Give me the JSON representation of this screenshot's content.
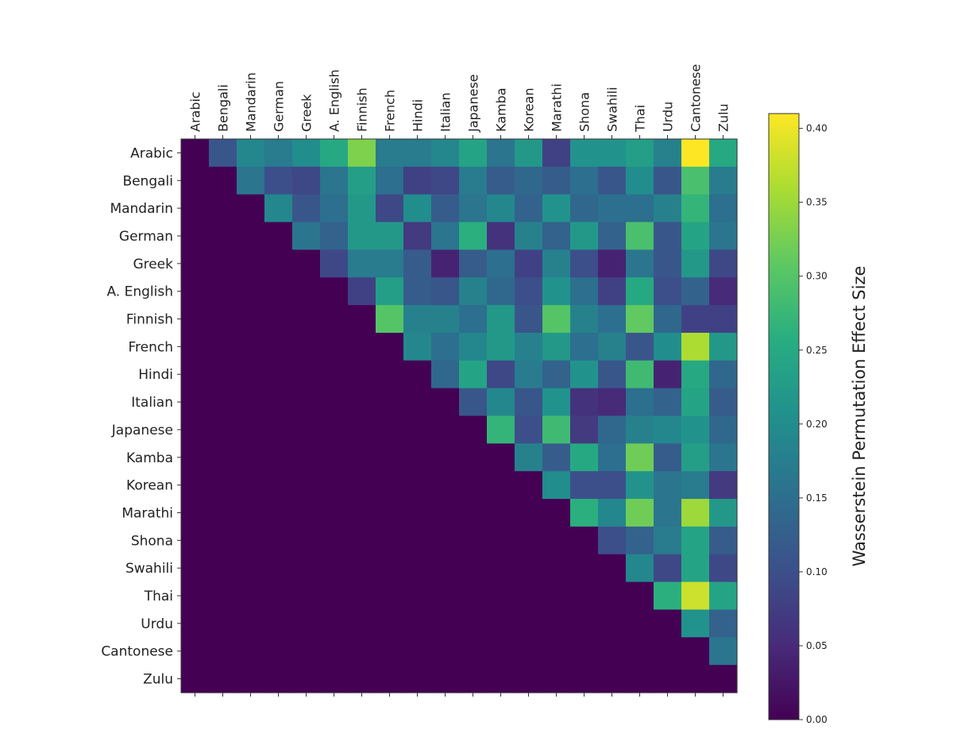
{
  "chart_data": {
    "type": "heatmap",
    "title": "",
    "xlabel": "",
    "ylabel": "",
    "colorbar_label": "Wasserstein Permutation Effect Size",
    "colormap": "viridis",
    "vmin": 0.0,
    "vmax": 0.41,
    "colorbar_ticks": [
      "0.00",
      "0.05",
      "0.10",
      "0.15",
      "0.20",
      "0.25",
      "0.30",
      "0.35",
      "0.40"
    ],
    "x_categories": [
      "Arabic",
      "Bengali",
      "Mandarin",
      "German",
      "Greek",
      "A. English",
      "Finnish",
      "French",
      "Hindi",
      "Italian",
      "Japanese",
      "Kamba",
      "Korean",
      "Marathi",
      "Shona",
      "Swahili",
      "Thai",
      "Urdu",
      "Cantonese",
      "Zulu"
    ],
    "y_categories": [
      "Arabic",
      "Bengali",
      "Mandarin",
      "German",
      "Greek",
      "A. English",
      "Finnish",
      "French",
      "Hindi",
      "Italian",
      "Japanese",
      "Kamba",
      "Korean",
      "Marathi",
      "Shona",
      "Swahili",
      "Thai",
      "Urdu",
      "Cantonese",
      "Zulu"
    ],
    "values": [
      [
        0,
        0.11,
        0.19,
        0.17,
        0.2,
        0.25,
        0.33,
        0.17,
        0.17,
        0.19,
        0.24,
        0.16,
        0.22,
        0.08,
        0.21,
        0.21,
        0.23,
        0.18,
        0.41,
        0.25
      ],
      [
        0,
        0,
        0.16,
        0.1,
        0.09,
        0.16,
        0.23,
        0.15,
        0.08,
        0.09,
        0.17,
        0.12,
        0.14,
        0.12,
        0.15,
        0.11,
        0.2,
        0.11,
        0.29,
        0.17
      ],
      [
        0,
        0,
        0,
        0.19,
        0.11,
        0.15,
        0.22,
        0.09,
        0.2,
        0.12,
        0.16,
        0.19,
        0.13,
        0.21,
        0.14,
        0.15,
        0.15,
        0.18,
        0.27,
        0.15
      ],
      [
        0,
        0,
        0,
        0,
        0.16,
        0.13,
        0.22,
        0.22,
        0.07,
        0.16,
        0.26,
        0.06,
        0.18,
        0.13,
        0.22,
        0.13,
        0.29,
        0.11,
        0.24,
        0.16
      ],
      [
        0,
        0,
        0,
        0,
        0,
        0.09,
        0.17,
        0.17,
        0.12,
        0.04,
        0.12,
        0.15,
        0.08,
        0.18,
        0.1,
        0.04,
        0.16,
        0.11,
        0.22,
        0.09
      ],
      [
        0,
        0,
        0,
        0,
        0,
        0,
        0.08,
        0.23,
        0.12,
        0.11,
        0.18,
        0.14,
        0.1,
        0.21,
        0.15,
        0.08,
        0.25,
        0.1,
        0.13,
        0.05
      ],
      [
        0,
        0,
        0,
        0,
        0,
        0,
        0,
        0.3,
        0.18,
        0.18,
        0.15,
        0.22,
        0.11,
        0.3,
        0.18,
        0.15,
        0.31,
        0.14,
        0.08,
        0.08
      ],
      [
        0,
        0,
        0,
        0,
        0,
        0,
        0,
        0,
        0.19,
        0.15,
        0.19,
        0.22,
        0.18,
        0.22,
        0.15,
        0.18,
        0.11,
        0.2,
        0.36,
        0.22
      ],
      [
        0,
        0,
        0,
        0,
        0,
        0,
        0,
        0,
        0,
        0.14,
        0.24,
        0.09,
        0.17,
        0.13,
        0.21,
        0.11,
        0.28,
        0.04,
        0.25,
        0.14
      ],
      [
        0,
        0,
        0,
        0,
        0,
        0,
        0,
        0,
        0,
        0,
        0.11,
        0.19,
        0.11,
        0.21,
        0.06,
        0.05,
        0.15,
        0.13,
        0.24,
        0.12
      ],
      [
        0,
        0,
        0,
        0,
        0,
        0,
        0,
        0,
        0,
        0,
        0,
        0.27,
        0.1,
        0.28,
        0.07,
        0.14,
        0.18,
        0.19,
        0.21,
        0.14
      ],
      [
        0,
        0,
        0,
        0,
        0,
        0,
        0,
        0,
        0,
        0,
        0,
        0,
        0.18,
        0.12,
        0.25,
        0.15,
        0.32,
        0.12,
        0.23,
        0.16
      ],
      [
        0,
        0,
        0,
        0,
        0,
        0,
        0,
        0,
        0,
        0,
        0,
        0,
        0,
        0.2,
        0.1,
        0.1,
        0.21,
        0.16,
        0.17,
        0.07
      ],
      [
        0,
        0,
        0,
        0,
        0,
        0,
        0,
        0,
        0,
        0,
        0,
        0,
        0,
        0,
        0.26,
        0.19,
        0.32,
        0.16,
        0.35,
        0.22
      ],
      [
        0,
        0,
        0,
        0,
        0,
        0,
        0,
        0,
        0,
        0,
        0,
        0,
        0,
        0,
        0,
        0.1,
        0.13,
        0.17,
        0.24,
        0.12
      ],
      [
        0,
        0,
        0,
        0,
        0,
        0,
        0,
        0,
        0,
        0,
        0,
        0,
        0,
        0,
        0,
        0,
        0.19,
        0.09,
        0.24,
        0.09
      ],
      [
        0,
        0,
        0,
        0,
        0,
        0,
        0,
        0,
        0,
        0,
        0,
        0,
        0,
        0,
        0,
        0,
        0,
        0.26,
        0.38,
        0.24
      ],
      [
        0,
        0,
        0,
        0,
        0,
        0,
        0,
        0,
        0,
        0,
        0,
        0,
        0,
        0,
        0,
        0,
        0,
        0,
        0.21,
        0.13
      ],
      [
        0,
        0,
        0,
        0,
        0,
        0,
        0,
        0,
        0,
        0,
        0,
        0,
        0,
        0,
        0,
        0,
        0,
        0,
        0,
        0.16
      ],
      [
        0,
        0,
        0,
        0,
        0,
        0,
        0,
        0,
        0,
        0,
        0,
        0,
        0,
        0,
        0,
        0,
        0,
        0,
        0,
        0
      ]
    ],
    "grid": false,
    "legend": "colorbar-right"
  }
}
